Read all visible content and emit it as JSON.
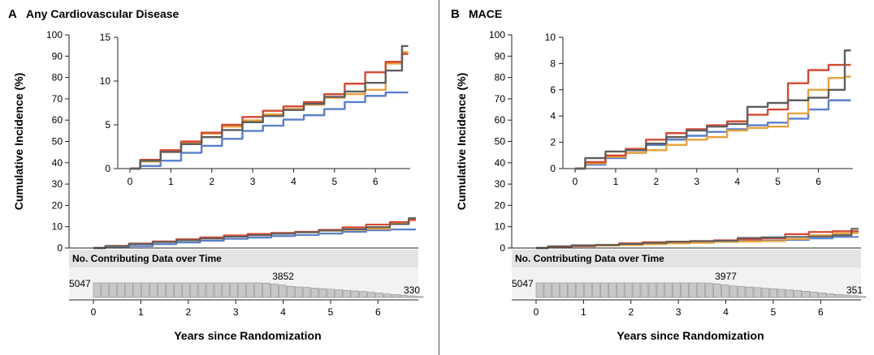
{
  "figure": {
    "series_colors": {
      "blue": "#5a7fc8",
      "orange": "#e9a13b",
      "red": "#d24a32",
      "gray": "#5e5e5e"
    }
  },
  "chart_data": [
    {
      "panel_letter": "A",
      "title": "Any Cardiovascular Disease",
      "type": "line",
      "ylabel": "Cumulative Incidence (%)",
      "xlabel": "Years since Randomization",
      "main_ylim": [
        0,
        100
      ],
      "main_yticks": [
        "0",
        "10",
        "20",
        "30",
        "40",
        "50",
        "60",
        "70",
        "80",
        "90",
        "100"
      ],
      "main_xticks": [
        "0",
        "1",
        "2",
        "3",
        "4",
        "5",
        "6"
      ],
      "xlim": [
        0,
        6.85
      ],
      "inset_ylim": [
        0,
        15
      ],
      "inset_yticks": [
        "0",
        "5",
        "10",
        "15"
      ],
      "inset_xticks": [
        "0",
        "1",
        "2",
        "3",
        "4",
        "5",
        "6"
      ],
      "series": [
        {
          "color_key": "blue",
          "x": [
            0,
            0.5,
            1,
            1.5,
            2,
            2.5,
            3,
            3.5,
            4,
            4.5,
            5,
            5.5,
            6,
            6.5,
            6.8
          ],
          "y": [
            0,
            0.3,
            0.9,
            1.8,
            2.6,
            3.4,
            4.3,
            4.9,
            5.6,
            6.1,
            6.8,
            7.6,
            8.3,
            8.7,
            8.7
          ]
        },
        {
          "color_key": "orange",
          "x": [
            0,
            0.5,
            1,
            1.5,
            2,
            2.5,
            3,
            3.5,
            4,
            4.5,
            5,
            5.5,
            6,
            6.5,
            6.8
          ],
          "y": [
            0,
            0.8,
            1.9,
            3.0,
            4.0,
            4.8,
            5.5,
            6.2,
            6.8,
            7.3,
            8.1,
            8.5,
            9.0,
            12.0,
            13.3
          ]
        },
        {
          "color_key": "red",
          "x": [
            0,
            0.5,
            1,
            1.5,
            2,
            2.5,
            3,
            3.5,
            4,
            4.5,
            5,
            5.5,
            6,
            6.5,
            6.8
          ],
          "y": [
            0,
            1.0,
            2.1,
            3.1,
            4.1,
            5.0,
            5.9,
            6.6,
            7.1,
            7.6,
            8.5,
            9.7,
            11.0,
            12.2,
            13.1
          ]
        },
        {
          "color_key": "gray",
          "x": [
            0,
            0.5,
            1,
            1.5,
            2,
            2.5,
            3,
            3.5,
            4,
            4.5,
            5,
            5.5,
            6,
            6.5,
            6.8
          ],
          "y": [
            0,
            0.9,
            1.9,
            2.8,
            3.6,
            4.4,
            5.3,
            6.0,
            6.7,
            7.4,
            8.2,
            8.8,
            9.8,
            11.2,
            14.0
          ]
        }
      ],
      "risk_table": {
        "header": "No. Contributing Data over Time",
        "labels": [
          {
            "x": 0,
            "text": "5047"
          },
          {
            "x": 4,
            "text": "3852"
          },
          {
            "x": 6.85,
            "text": "330"
          }
        ],
        "values_x": [
          0,
          0.17,
          0.34,
          0.51,
          0.68,
          0.85,
          1.02,
          1.19,
          1.36,
          1.53,
          1.7,
          1.87,
          2.04,
          2.21,
          2.38,
          2.55,
          2.72,
          2.89,
          3.06,
          3.23,
          3.4,
          3.57,
          3.74,
          3.91,
          4.08,
          4.25,
          4.42,
          4.59,
          4.76,
          4.93,
          5.1,
          5.27,
          5.44,
          5.61,
          5.78,
          5.95,
          6.12,
          6.29,
          6.46,
          6.63,
          6.8
        ],
        "values": [
          5047,
          5047,
          5047,
          5047,
          5047,
          5047,
          5047,
          5047,
          5047,
          5047,
          5047,
          5047,
          5047,
          5047,
          5047,
          5047,
          5047,
          5047,
          5047,
          5047,
          5047,
          4980,
          4650,
          4300,
          3852,
          3650,
          3450,
          3250,
          3050,
          2850,
          2650,
          2450,
          2250,
          2050,
          1800,
          1500,
          1200,
          1000,
          800,
          550,
          330
        ]
      }
    },
    {
      "panel_letter": "B",
      "title": "MACE",
      "type": "line",
      "ylabel": "Cumulative Incidence (%)",
      "xlabel": "Years since Randomization",
      "main_ylim": [
        0,
        100
      ],
      "main_yticks": [
        "0",
        "10",
        "20",
        "30",
        "40",
        "50",
        "60",
        "70",
        "80",
        "90",
        "100"
      ],
      "main_xticks": [
        "0",
        "1",
        "2",
        "3",
        "4",
        "5",
        "6"
      ],
      "xlim": [
        0,
        6.85
      ],
      "inset_ylim": [
        0,
        10
      ],
      "inset_yticks": [
        "0",
        "2",
        "4",
        "6",
        "8",
        "10"
      ],
      "inset_xticks": [
        "0",
        "1",
        "2",
        "3",
        "4",
        "5",
        "6"
      ],
      "series": [
        {
          "color_key": "blue",
          "x": [
            0,
            0.5,
            1,
            1.5,
            2,
            2.5,
            3,
            3.5,
            4,
            4.5,
            5,
            5.5,
            6,
            6.5,
            6.8
          ],
          "y": [
            0,
            0.3,
            0.8,
            1.2,
            1.8,
            2.2,
            2.5,
            2.8,
            3.0,
            3.3,
            3.5,
            3.8,
            4.5,
            5.2,
            5.2
          ]
        },
        {
          "color_key": "orange",
          "x": [
            0,
            0.5,
            1,
            1.5,
            2,
            2.5,
            3,
            3.5,
            4,
            4.5,
            5,
            5.5,
            6,
            6.5,
            6.8
          ],
          "y": [
            0,
            0.4,
            0.9,
            1.2,
            1.4,
            1.8,
            2.2,
            2.4,
            2.9,
            3.1,
            3.2,
            4.2,
            6.0,
            6.9,
            7.0
          ]
        },
        {
          "color_key": "red",
          "x": [
            0,
            0.5,
            1,
            1.5,
            2,
            2.5,
            3,
            3.5,
            4,
            4.5,
            5,
            5.5,
            6,
            6.5,
            6.8
          ],
          "y": [
            0,
            0.5,
            1.0,
            1.5,
            2.2,
            2.7,
            3.0,
            3.3,
            3.6,
            4.1,
            4.5,
            6.5,
            7.5,
            7.9,
            7.9
          ]
        },
        {
          "color_key": "gray",
          "x": [
            0,
            0.5,
            1,
            1.5,
            2,
            2.5,
            3,
            3.5,
            4,
            4.5,
            5,
            5.5,
            6,
            6.5,
            6.8
          ],
          "y": [
            0,
            0.8,
            1.3,
            1.4,
            1.9,
            2.4,
            2.9,
            3.2,
            3.4,
            4.7,
            5.0,
            5.2,
            5.4,
            6.0,
            9.0
          ]
        }
      ],
      "risk_table": {
        "header": "No. Contributing Data over Time",
        "labels": [
          {
            "x": 0,
            "text": "5047"
          },
          {
            "x": 4,
            "text": "3977"
          },
          {
            "x": 6.85,
            "text": "351"
          }
        ],
        "values_x": [
          0,
          0.17,
          0.34,
          0.51,
          0.68,
          0.85,
          1.02,
          1.19,
          1.36,
          1.53,
          1.7,
          1.87,
          2.04,
          2.21,
          2.38,
          2.55,
          2.72,
          2.89,
          3.06,
          3.23,
          3.4,
          3.57,
          3.74,
          3.91,
          4.08,
          4.25,
          4.42,
          4.59,
          4.76,
          4.93,
          5.1,
          5.27,
          5.44,
          5.61,
          5.78,
          5.95,
          6.12,
          6.29,
          6.46,
          6.63,
          6.8
        ],
        "values": [
          5047,
          5047,
          5047,
          5047,
          5047,
          5047,
          5047,
          5047,
          5047,
          5047,
          5047,
          5047,
          5047,
          5047,
          5047,
          5047,
          5047,
          5047,
          5047,
          5047,
          5047,
          5000,
          4700,
          4350,
          3977,
          3800,
          3600,
          3400,
          3200,
          3000,
          2800,
          2600,
          2400,
          2150,
          1900,
          1600,
          1300,
          1050,
          850,
          600,
          351
        ]
      }
    }
  ]
}
